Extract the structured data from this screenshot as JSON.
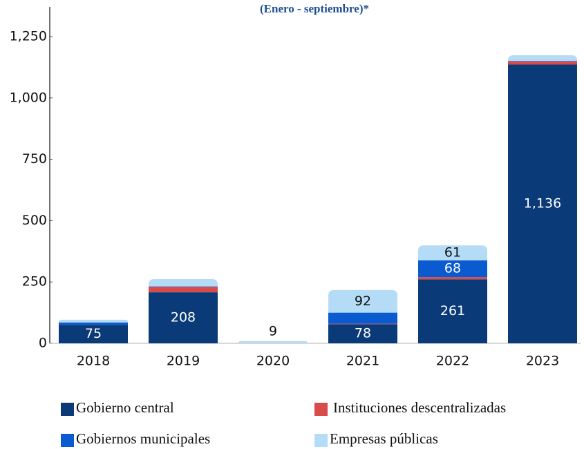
{
  "chart_data": {
    "type": "stacked_bar",
    "subtitle": "(Enero - septiembre)*",
    "categories": [
      "2018",
      "2019",
      "2020",
      "2021",
      "2022",
      "2023"
    ],
    "series": [
      {
        "name": "Gobierno central",
        "color": "#0b3a78",
        "values": [
          75,
          208,
          0,
          78,
          261,
          1136
        ],
        "value_labels": [
          "75",
          "208",
          null,
          "78",
          "261",
          "1,136"
        ]
      },
      {
        "name": "Instituciones descentralizadas",
        "color": "#d84b4b",
        "values": [
          0,
          22,
          0,
          2,
          9,
          13
        ],
        "value_labels": [
          null,
          null,
          null,
          null,
          null,
          null
        ]
      },
      {
        "name": "Gobiernos municipales",
        "color": "#0a5ad0",
        "values": [
          10,
          2,
          0,
          45,
          68,
          2
        ],
        "value_labels": [
          null,
          null,
          null,
          null,
          "68",
          null
        ]
      },
      {
        "name": "Empresas públicas",
        "color": "#b5dcf6",
        "values": [
          11,
          30,
          9,
          92,
          61,
          23
        ],
        "value_labels": [
          null,
          null,
          "9",
          "92",
          "61",
          null
        ]
      }
    ],
    "ylim": [
      0,
      1250
    ],
    "yticks": [
      0,
      250,
      500,
      750,
      {
        "value": 1000,
        "label": "1,000"
      },
      {
        "value": 1250,
        "label": "1,250"
      }
    ],
    "legend": "bottom"
  }
}
